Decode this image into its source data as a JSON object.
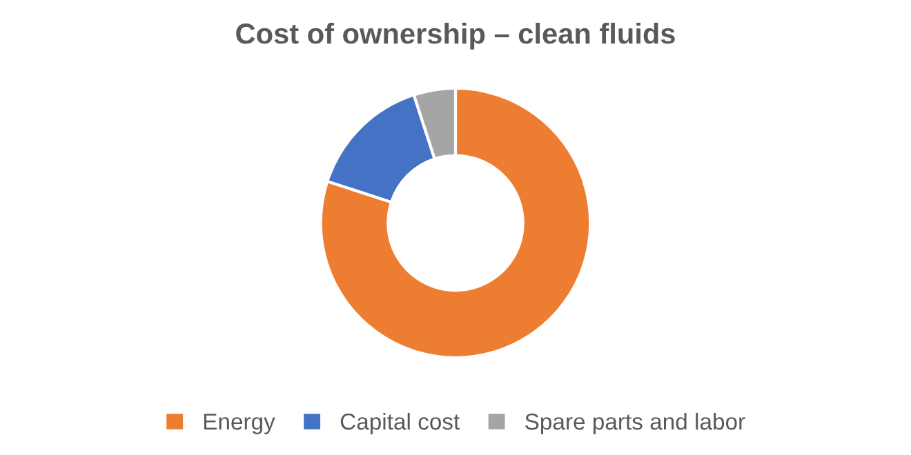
{
  "chart_data": {
    "type": "donut",
    "title": "Cost of ownership – clean fluids",
    "categories": [
      "Energy",
      "Capital cost",
      "Spare parts and labor"
    ],
    "values": [
      80,
      15,
      5
    ],
    "colors": [
      "#ed7d31",
      "#4472c4",
      "#a5a5a5"
    ],
    "legend": "bottom"
  }
}
